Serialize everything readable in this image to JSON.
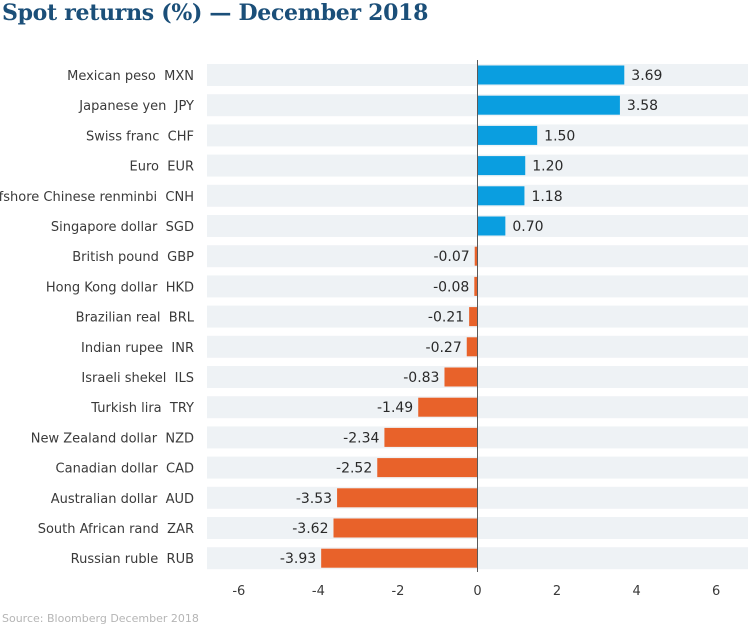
{
  "chart_data": {
    "type": "bar",
    "orientation": "horizontal",
    "title": "Spot returns (%) — December 2018",
    "categories": [
      {
        "name": "Mexican peso",
        "code": "MXN"
      },
      {
        "name": "Japanese yen",
        "code": "JPY"
      },
      {
        "name": "Swiss franc",
        "code": "CHF"
      },
      {
        "name": "Euro",
        "code": "EUR"
      },
      {
        "name": "Offshore Chinese renminbi",
        "code": "CNH"
      },
      {
        "name": "Singapore dollar",
        "code": "SGD"
      },
      {
        "name": "British pound",
        "code": "GBP"
      },
      {
        "name": "Hong Kong dollar",
        "code": "HKD"
      },
      {
        "name": "Brazilian real",
        "code": "BRL"
      },
      {
        "name": "Indian rupee",
        "code": "INR"
      },
      {
        "name": "Israeli shekel",
        "code": "ILS"
      },
      {
        "name": "Turkish lira",
        "code": "TRY"
      },
      {
        "name": "New Zealand dollar",
        "code": "NZD"
      },
      {
        "name": "Canadian dollar",
        "code": "CAD"
      },
      {
        "name": "Australian dollar",
        "code": "AUD"
      },
      {
        "name": "South African rand",
        "code": "ZAR"
      },
      {
        "name": "Russian ruble",
        "code": "RUB"
      }
    ],
    "values": [
      3.69,
      3.58,
      1.5,
      1.2,
      1.18,
      0.7,
      -0.07,
      -0.08,
      -0.21,
      -0.27,
      -0.83,
      -1.49,
      -2.34,
      -2.52,
      -3.53,
      -3.62,
      -3.93
    ],
    "value_labels": [
      "3.69",
      "3.58",
      "1.50",
      "1.20",
      "1.18",
      "0.70",
      "-0.07",
      "-0.08",
      "-0.21",
      "-0.27",
      "-0.83",
      "-1.49",
      "-2.34",
      "-2.52",
      "-3.53",
      "-3.62",
      "-3.93"
    ],
    "xlim": [
      -6.8,
      6.8
    ],
    "xticks": [
      -6,
      -4,
      -2,
      0,
      2,
      4,
      6
    ],
    "xtick_labels": [
      "-6",
      "-4",
      "-2",
      "0",
      "2",
      "4",
      "6"
    ],
    "xlabel": "",
    "ylabel": "",
    "grid": false,
    "colors": {
      "positive": "#0a9ee0",
      "negative": "#e8622a",
      "row_band": "#eef2f5",
      "title": "#1b4f79",
      "zero_line": "#5a5a5a"
    }
  },
  "source": "Source: Bloomberg December 2018"
}
